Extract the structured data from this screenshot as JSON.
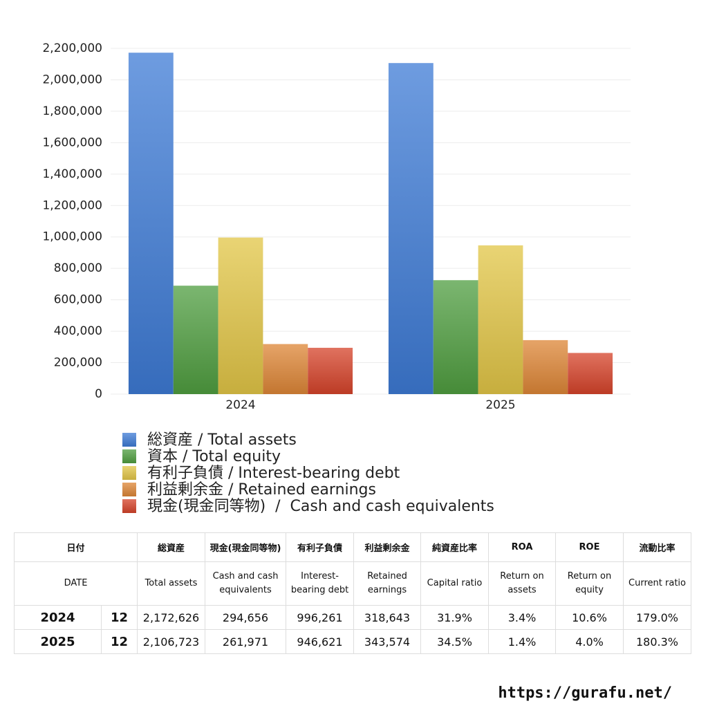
{
  "chart_data": {
    "type": "bar",
    "categories": [
      "2024",
      "2025"
    ],
    "series": [
      {
        "name": "総資産 / Total assets",
        "color": "#3d7bd6",
        "values": [
          2172626,
          2106723
        ]
      },
      {
        "name": "資本 / Total equity",
        "color": "#4f9e40",
        "values": [
          690000,
          725000
        ]
      },
      {
        "name": "有利子負債 / Interest-bearing debt",
        "color": "#e2c646",
        "values": [
          996261,
          946621
        ]
      },
      {
        "name": "利益剰余金 / Retained earnings",
        "color": "#de8636",
        "values": [
          318643,
          343574
        ]
      },
      {
        "name": "現金(現金同等物)  /  Cash and cash equivalents",
        "color": "#d6432a",
        "values": [
          294656,
          261971
        ]
      }
    ],
    "ylim": [
      0,
      2200000
    ],
    "yticks": [
      0,
      {
        "value": 200000,
        "label": "200,000"
      },
      {
        "value": 400000,
        "label": "400,000"
      },
      {
        "value": 600000,
        "label": "600,000"
      },
      {
        "value": 800000,
        "label": "800,000"
      },
      {
        "value": 1000000,
        "label": "1,000,000"
      },
      {
        "value": 1200000,
        "label": "1,200,000"
      },
      {
        "value": 1400000,
        "label": "1,400,000"
      },
      {
        "value": 1600000,
        "label": "1,600,000"
      },
      {
        "value": 1800000,
        "label": "1,800,000"
      },
      {
        "value": 2000000,
        "label": "2,000,000"
      },
      {
        "value": 2200000,
        "label": "2,200,000"
      }
    ],
    "grid": true
  },
  "table": {
    "header": [
      "日付",
      "総資産",
      "現金(現金同等物)",
      "有利子負債",
      "利益剰余金",
      "純資産比率",
      "ROA",
      "ROE",
      "流動比率"
    ],
    "subheader": [
      "DATE",
      "Total assets",
      "Cash and cash equivalents",
      "Interest-bearing debt",
      "Retained earnings",
      "Capital ratio",
      "Return on assets",
      "Return on equity",
      "Current ratio"
    ],
    "rows": [
      [
        "2024",
        "12",
        "2,172,626",
        "294,656",
        "996,261",
        "318,643",
        "31.9%",
        "3.4%",
        "10.6%",
        "179.0%"
      ],
      [
        "2025",
        "12",
        "2,106,723",
        "261,971",
        "946,621",
        "343,574",
        "34.5%",
        "1.4%",
        "4.0%",
        "180.3%"
      ]
    ]
  },
  "footer": "https://gurafu.net/"
}
